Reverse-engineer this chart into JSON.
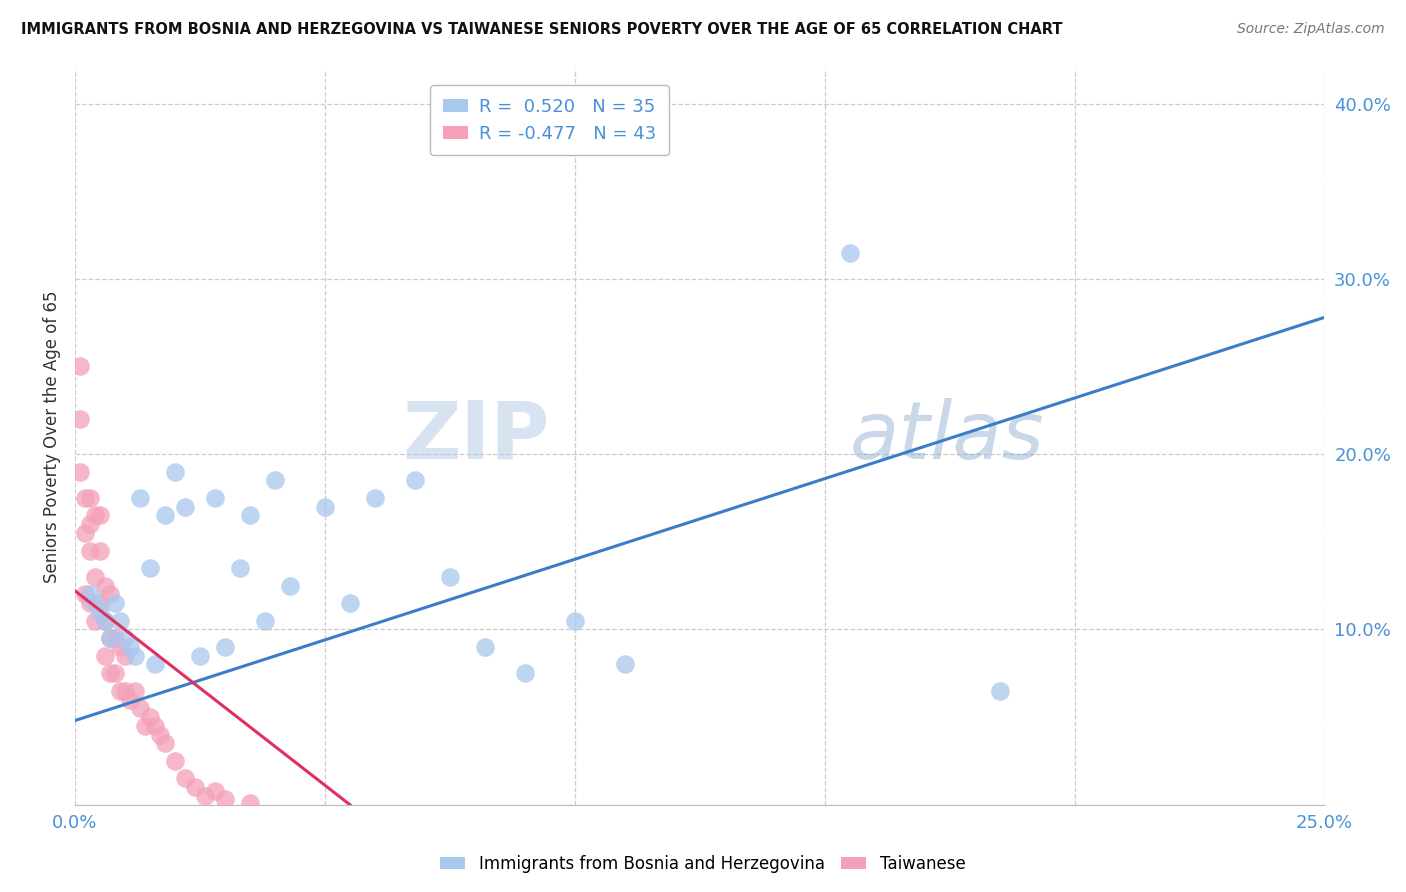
{
  "title": "IMMIGRANTS FROM BOSNIA AND HERZEGOVINA VS TAIWANESE SENIORS POVERTY OVER THE AGE OF 65 CORRELATION CHART",
  "source": "Source: ZipAtlas.com",
  "xlabel_bottom": "Immigrants from Bosnia and Herzegovina",
  "xlabel_bottom2": "Taiwanese",
  "ylabel": "Seniors Poverty Over the Age of 65",
  "xlim": [
    0.0,
    0.25
  ],
  "ylim": [
    0.0,
    0.42
  ],
  "x_ticks": [
    0.0,
    0.05,
    0.1,
    0.15,
    0.2,
    0.25
  ],
  "y_ticks_right": [
    0.0,
    0.1,
    0.2,
    0.3,
    0.4
  ],
  "R_blue": 0.52,
  "N_blue": 35,
  "R_pink": -0.477,
  "N_pink": 43,
  "blue_color": "#A8C8EE",
  "pink_color": "#F4A0B8",
  "blue_line_color": "#3A7EC8",
  "pink_line_color": "#E03060",
  "watermark_zip": "ZIP",
  "watermark_atlas": "atlas",
  "blue_scatter_x": [
    0.003,
    0.004,
    0.005,
    0.006,
    0.007,
    0.008,
    0.009,
    0.01,
    0.011,
    0.012,
    0.013,
    0.015,
    0.016,
    0.018,
    0.02,
    0.022,
    0.025,
    0.028,
    0.03,
    0.033,
    0.035,
    0.038,
    0.04,
    0.043,
    0.05,
    0.055,
    0.06,
    0.068,
    0.075,
    0.082,
    0.09,
    0.1,
    0.11,
    0.155,
    0.185
  ],
  "blue_scatter_y": [
    0.12,
    0.115,
    0.11,
    0.105,
    0.095,
    0.115,
    0.105,
    0.095,
    0.09,
    0.085,
    0.175,
    0.135,
    0.08,
    0.165,
    0.19,
    0.17,
    0.085,
    0.175,
    0.09,
    0.135,
    0.165,
    0.105,
    0.185,
    0.125,
    0.17,
    0.115,
    0.175,
    0.185,
    0.13,
    0.09,
    0.075,
    0.105,
    0.08,
    0.315,
    0.065
  ],
  "pink_scatter_x": [
    0.001,
    0.001,
    0.001,
    0.002,
    0.002,
    0.002,
    0.003,
    0.003,
    0.003,
    0.003,
    0.004,
    0.004,
    0.004,
    0.005,
    0.005,
    0.005,
    0.006,
    0.006,
    0.006,
    0.007,
    0.007,
    0.007,
    0.008,
    0.008,
    0.009,
    0.009,
    0.01,
    0.01,
    0.011,
    0.012,
    0.013,
    0.014,
    0.015,
    0.016,
    0.017,
    0.018,
    0.02,
    0.022,
    0.024,
    0.026,
    0.028,
    0.03,
    0.035
  ],
  "pink_scatter_y": [
    0.25,
    0.22,
    0.19,
    0.175,
    0.155,
    0.12,
    0.175,
    0.16,
    0.145,
    0.115,
    0.165,
    0.13,
    0.105,
    0.165,
    0.145,
    0.115,
    0.125,
    0.105,
    0.085,
    0.12,
    0.095,
    0.075,
    0.095,
    0.075,
    0.09,
    0.065,
    0.085,
    0.065,
    0.06,
    0.065,
    0.055,
    0.045,
    0.05,
    0.045,
    0.04,
    0.035,
    0.025,
    0.015,
    0.01,
    0.005,
    0.008,
    0.003,
    0.001
  ],
  "background_color": "#FFFFFF",
  "grid_color": "#CCCCCC"
}
